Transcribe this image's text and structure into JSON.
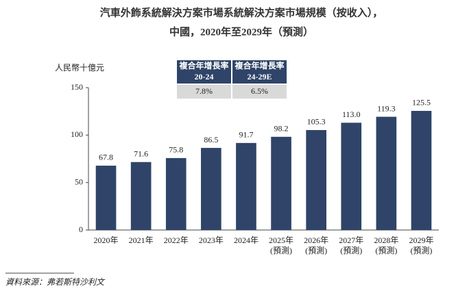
{
  "chart_data": {
    "type": "bar",
    "title": "汽車外飾系統解決方案市場系統解決方案市場規模（按收入），",
    "subtitle": "中國，2020年至2029年（預測）",
    "y_label": "人民幣十億元",
    "categories": [
      "2020年",
      "2021年",
      "2022年",
      "2023年",
      "2024年",
      "2025年\n(預測)",
      "2026年\n(預測)",
      "2027年\n(預測)",
      "2028年\n(預測)",
      "2029年\n(預測)"
    ],
    "values": [
      67.8,
      71.6,
      75.8,
      86.5,
      91.7,
      98.2,
      105.3,
      113.0,
      119.3,
      125.5
    ],
    "value_labels": [
      "67.8",
      "71.6",
      "75.8",
      "86.5",
      "91.7",
      "98.2",
      "105.3",
      "113.0",
      "119.3",
      "125.5"
    ],
    "color": "#2f4468",
    "ylim": [
      0,
      150
    ],
    "yticks": [
      0,
      50,
      100,
      150
    ],
    "grid": false
  },
  "cagr_table": {
    "headers": [
      [
        "複合年增長率",
        "20-24"
      ],
      [
        "複合年增長率",
        "24-29E"
      ]
    ],
    "values": [
      "7.8%",
      "6.5%"
    ]
  },
  "source": "資料來源：弗若斯特沙利文"
}
